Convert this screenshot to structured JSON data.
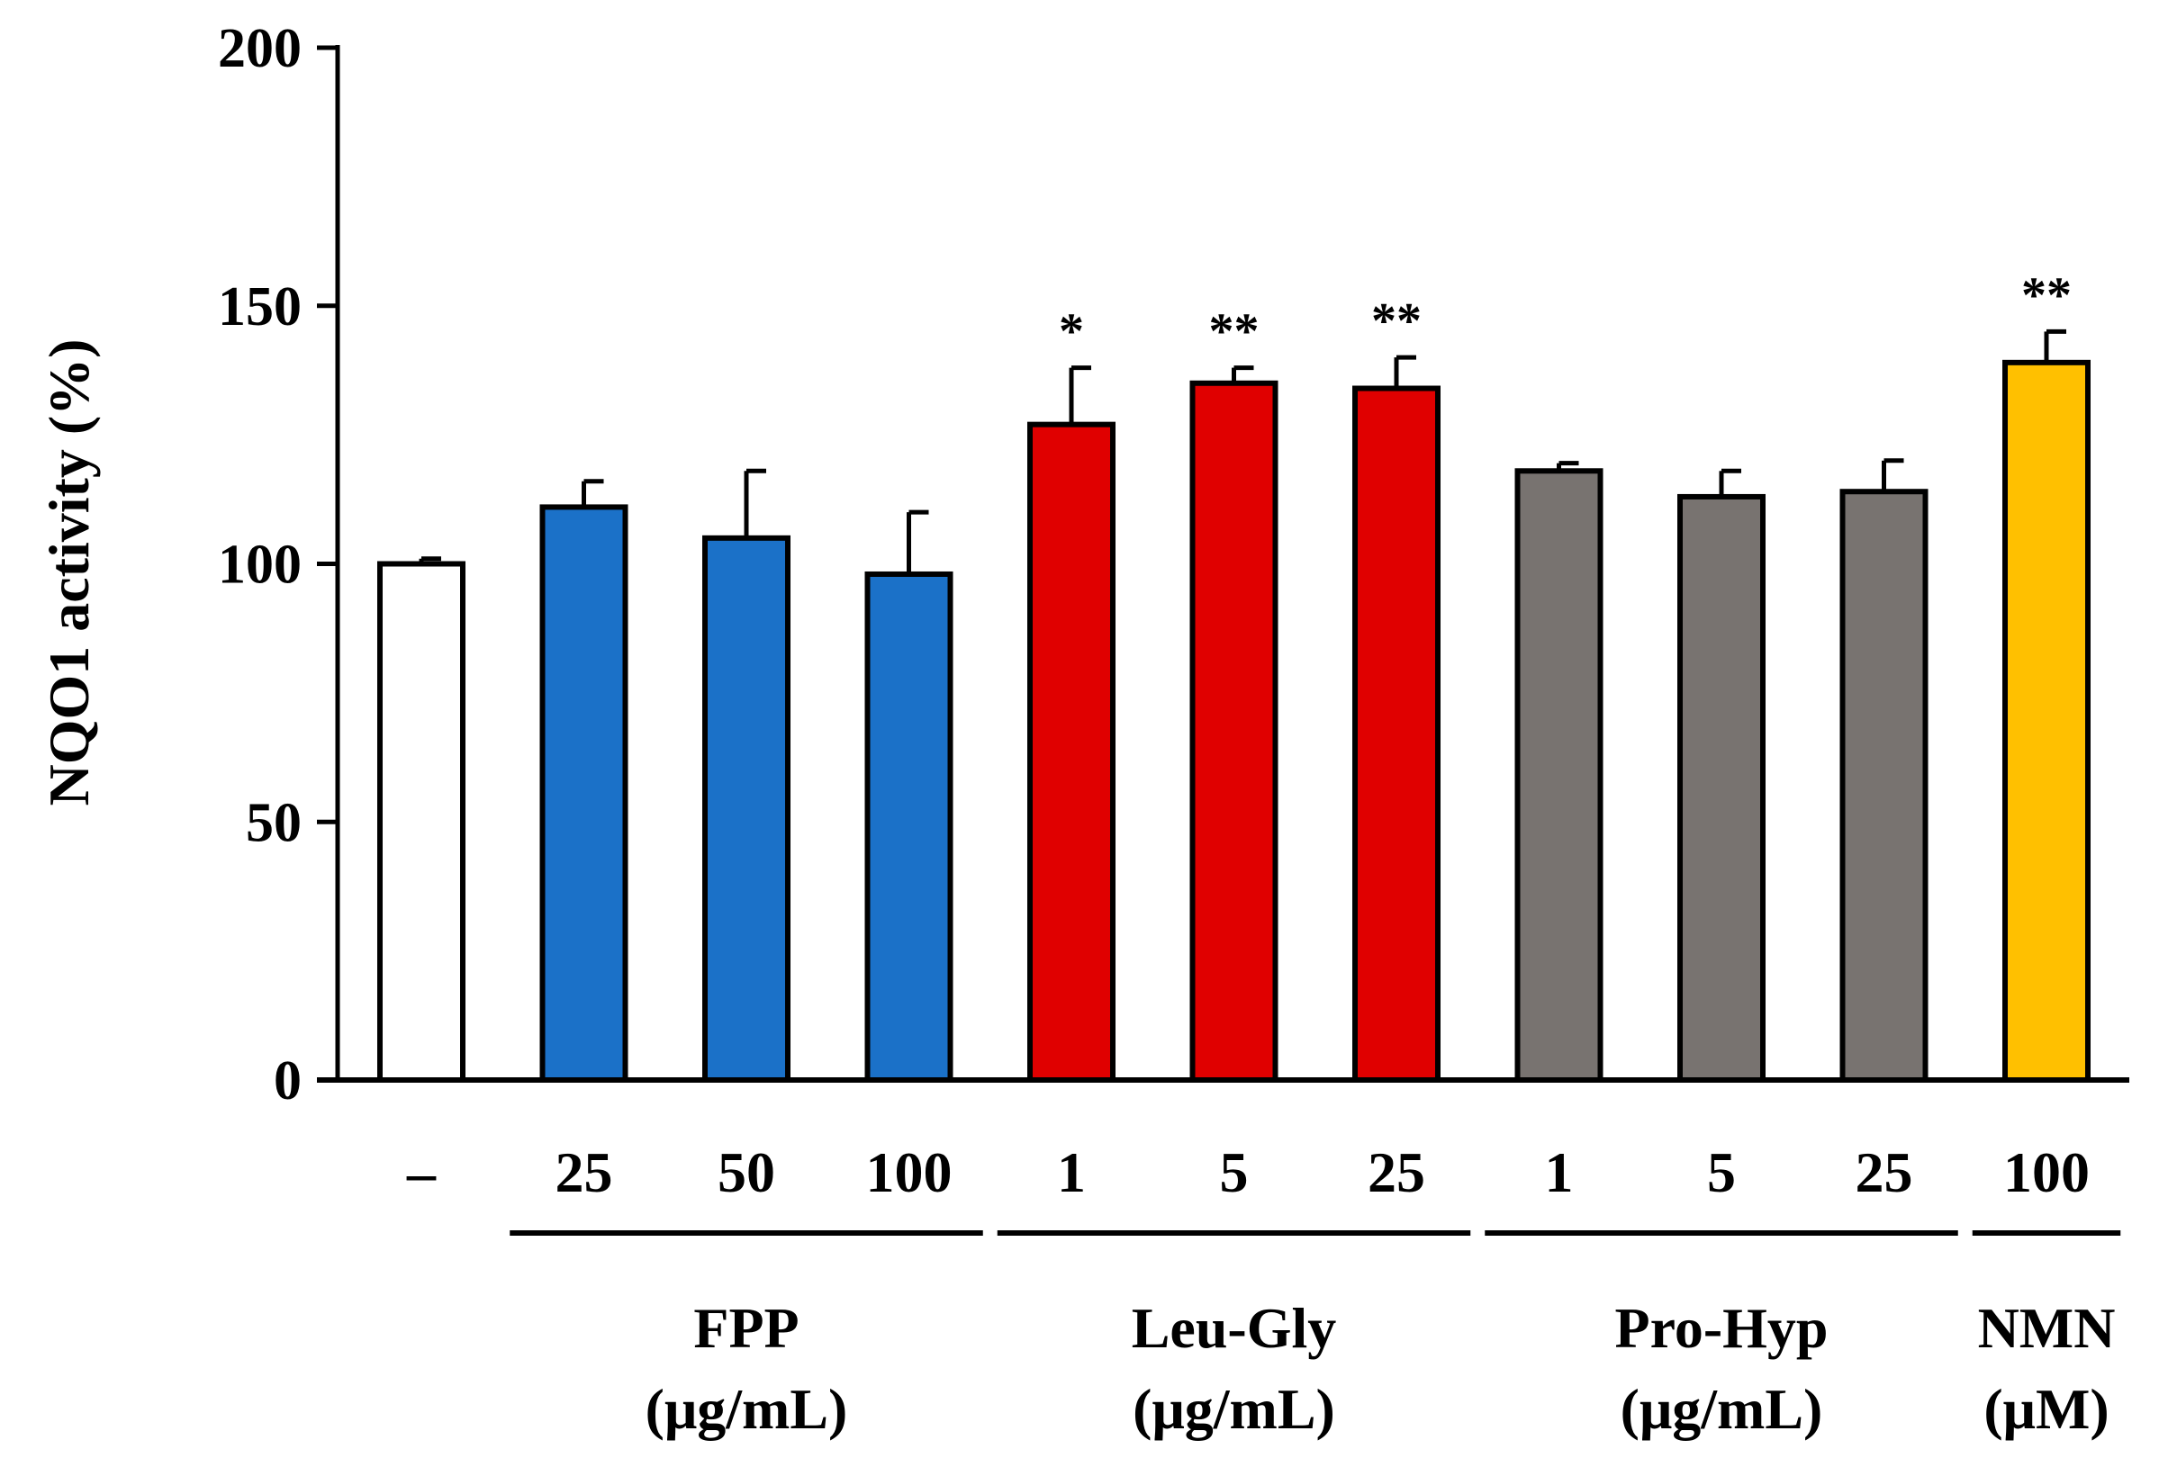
{
  "chart_data": {
    "type": "bar",
    "title": "",
    "xlabel": "",
    "ylabel": "NQO1 activity (%)",
    "ylim": [
      0,
      200
    ],
    "yticks": [
      0,
      50,
      100,
      150,
      200
    ],
    "grid": false,
    "categories": [
      "–",
      "25",
      "50",
      "100",
      "1",
      "5",
      "25",
      "1",
      "5",
      "25",
      "100"
    ],
    "values": [
      100,
      111,
      105,
      98,
      127,
      135,
      134,
      118,
      113,
      114,
      139
    ],
    "errors": [
      1,
      5,
      13,
      12,
      11,
      3,
      6,
      1.5,
      5,
      6,
      6
    ],
    "significance": [
      "",
      "",
      "",
      "",
      "*",
      "**",
      "**",
      "",
      "",
      "",
      "**"
    ],
    "bar_colors": [
      "#ffffff",
      "#1b71c8",
      "#1b71c8",
      "#1b71c8",
      "#e00000",
      "#e00000",
      "#e00000",
      "#787370",
      "#787370",
      "#787370",
      "#ffc000"
    ],
    "groups": [
      {
        "name": "FPP",
        "unit": "(μg/mL)",
        "start": 1,
        "end": 3
      },
      {
        "name": "Leu-Gly",
        "unit": "(μg/mL)",
        "start": 4,
        "end": 6
      },
      {
        "name": "Pro-Hyp",
        "unit": "(μg/mL)",
        "start": 7,
        "end": 9
      },
      {
        "name": "NMN",
        "unit": "(μM)",
        "start": 10,
        "end": 10
      }
    ]
  }
}
